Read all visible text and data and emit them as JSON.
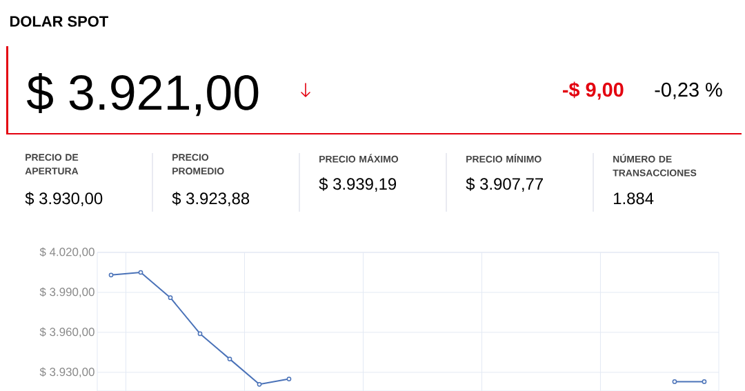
{
  "chart_data": {
    "type": "line",
    "title": "DOLAR SPOT",
    "annotations": [
      "$ 3.921,00",
      "-$ 9,00",
      "-0,23 %",
      "PRECIO DE APERTURA",
      "$ 3.930,00",
      "PRECIO PROMEDIO",
      "$ 3.923,88",
      "PRECIO MÁXIMO",
      "$ 3.939,19",
      "PRECIO MÍNIMO",
      "$ 3.907,77",
      "NÚMERO DE TRANSACCIONES",
      "1.884"
    ],
    "categories": [
      null,
      null,
      null,
      null,
      null,
      null,
      null,
      null,
      null,
      null,
      null,
      null,
      null,
      null,
      null,
      null,
      null,
      null,
      null,
      null,
      null
    ],
    "series": [
      {
        "color": "#4a72b8",
        "values": [
          4003,
          4005,
          3986,
          3959,
          3940,
          3921,
          3925,
          null,
          null,
          null,
          null,
          null,
          null,
          null,
          null,
          null,
          null,
          null,
          null,
          3923,
          3923
        ]
      }
    ],
    "ylim": [
      3916,
      4020
    ],
    "yticks": [
      {
        "value": 3930,
        "label": "$ 3.930,00"
      },
      {
        "value": 3960,
        "label": "$ 3.960,00"
      },
      {
        "value": 3990,
        "label": "$ 3.990,00"
      },
      {
        "value": 4020,
        "label": "$ 4.020,00"
      }
    ],
    "grid": true,
    "marker": "circle",
    "line_style": "solid",
    "tick_labels": "y"
  }
}
